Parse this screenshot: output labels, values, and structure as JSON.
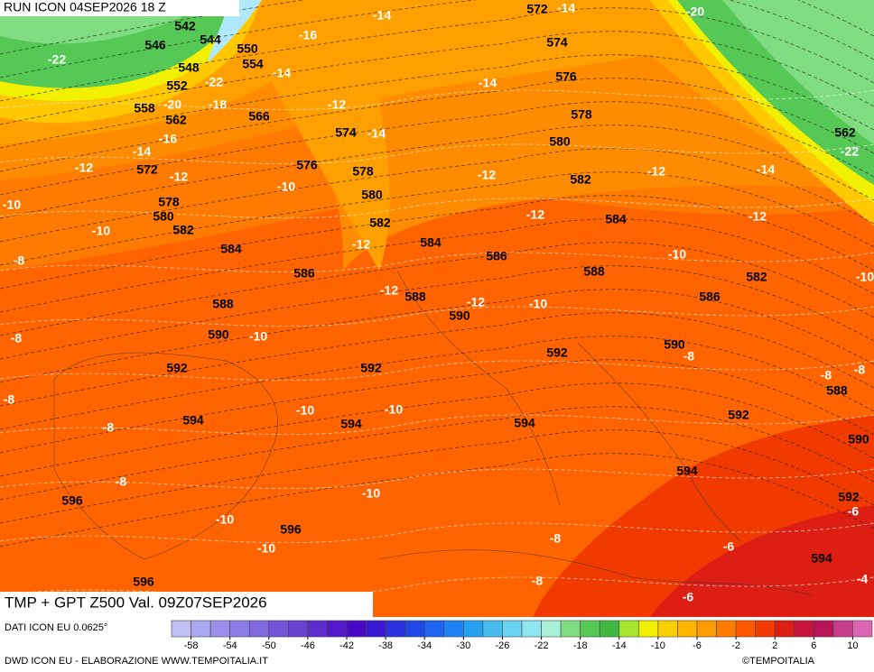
{
  "header": {
    "run": "RUN ICON 04SEP2026 18 Z"
  },
  "caption": {
    "title": "TMP + GPT Z500 Val. 09Z07SEP2026"
  },
  "map": {
    "gpt_labels": [
      542,
      544,
      546,
      550,
      548,
      554,
      552,
      558,
      562,
      566,
      572,
      574,
      576,
      578,
      580,
      582,
      584,
      574,
      576,
      578,
      580,
      582,
      584,
      586,
      588,
      586,
      582,
      572,
      578,
      580,
      582,
      584,
      586,
      588,
      590,
      592,
      594,
      596,
      596,
      596,
      588,
      590,
      592,
      592,
      590,
      594,
      594,
      594,
      592,
      588,
      590,
      592,
      594,
      562
    ],
    "tmp_labels": [
      -14,
      -14,
      -20,
      -16,
      -22,
      -14,
      -22,
      -14,
      -20,
      -18,
      -12,
      -16,
      -14,
      -14,
      -12,
      -12,
      -10,
      -12,
      -12,
      -14,
      -22,
      -10,
      -10,
      -12,
      -12,
      -12,
      -8,
      -10,
      -12,
      -12,
      -10,
      -10,
      -8,
      -10,
      -8,
      -8,
      -8,
      -8,
      -10,
      -10,
      -8,
      -8,
      -10,
      -10,
      -10,
      -8,
      -6,
      -6,
      -8,
      -6,
      -4
    ]
  },
  "legend": {
    "source": "DATI ICON EU 0.0625°",
    "colors": [
      "#c0c0f4",
      "#aaa8f0",
      "#9a90ea",
      "#8c7ce6",
      "#8068de",
      "#7454d6",
      "#6a40ce",
      "#5e2ccc",
      "#5418c8",
      "#4a08c4",
      "#3a18d0",
      "#2a30dc",
      "#2048e6",
      "#1e64f0",
      "#1e82f2",
      "#28a0f0",
      "#46bcf0",
      "#66d4f2",
      "#90e6f0",
      "#a8f0d8",
      "#80dc80",
      "#56c856",
      "#40b840",
      "#a8e632",
      "#f0f000",
      "#f8d000",
      "#ffb400",
      "#ff9a00",
      "#ff7c00",
      "#ff5a00",
      "#f03a00",
      "#dc1e14",
      "#c8143c",
      "#b8145a",
      "#c83c8c",
      "#dc64b4"
    ],
    "ticks": [
      -58,
      -54,
      -50,
      -46,
      -42,
      -38,
      -34,
      -30,
      -26,
      -22,
      -18,
      -14,
      -10,
      -6,
      -2,
      2,
      6,
      10
    ],
    "range": [
      -60,
      12
    ]
  },
  "footer": {
    "credit": "DWD ICON EU - ELABORAZIONE WWW.TEMPOITALIA.IT",
    "brand": "©TEMPOITALIA"
  }
}
